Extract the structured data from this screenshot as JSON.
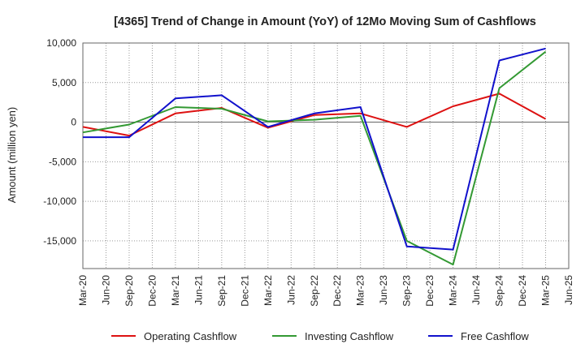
{
  "chart_data": {
    "type": "line",
    "title": "[4365]  Trend of Change in Amount (YoY) of 12Mo Moving Sum of Cashflows",
    "xlabel": "",
    "ylabel": "Amount (million yen)",
    "ylim": [
      -18500,
      10000
    ],
    "yticks": [
      10000,
      5000,
      0,
      -5000,
      -10000,
      -15000
    ],
    "ytick_labels": [
      "10,000",
      "5,000",
      "0",
      "-5,000",
      "-10,000",
      "-15,000"
    ],
    "categories": [
      "Mar-20",
      "Jun-20",
      "Sep-20",
      "Dec-20",
      "Mar-21",
      "Jun-21",
      "Sep-21",
      "Dec-21",
      "Mar-22",
      "Jun-22",
      "Sep-22",
      "Dec-22",
      "Mar-23",
      "Jun-23",
      "Sep-23",
      "Dec-23",
      "Mar-24",
      "Jun-24",
      "Sep-24",
      "Dec-24",
      "Mar-25",
      "Jun-25"
    ],
    "grid": true,
    "legend_position": "bottom",
    "series": [
      {
        "name": "Operating Cashflow",
        "color": "#dd1111",
        "values": [
          -600,
          null,
          -1700,
          null,
          1100,
          null,
          1800,
          null,
          -700,
          null,
          900,
          null,
          1100,
          null,
          -600,
          null,
          2000,
          null,
          3600,
          null,
          400,
          null
        ]
      },
      {
        "name": "Investing Cashflow",
        "color": "#339933",
        "values": [
          -1300,
          null,
          -300,
          null,
          1900,
          null,
          1700,
          null,
          100,
          null,
          300,
          null,
          800,
          null,
          -15000,
          null,
          -18000,
          null,
          4300,
          null,
          8900,
          null
        ]
      },
      {
        "name": "Free Cashflow",
        "color": "#1111cc",
        "values": [
          -1900,
          null,
          -1900,
          null,
          3000,
          null,
          3400,
          null,
          -600,
          null,
          1100,
          null,
          1900,
          null,
          -15700,
          null,
          -16100,
          null,
          7800,
          null,
          9300,
          null
        ]
      }
    ]
  }
}
